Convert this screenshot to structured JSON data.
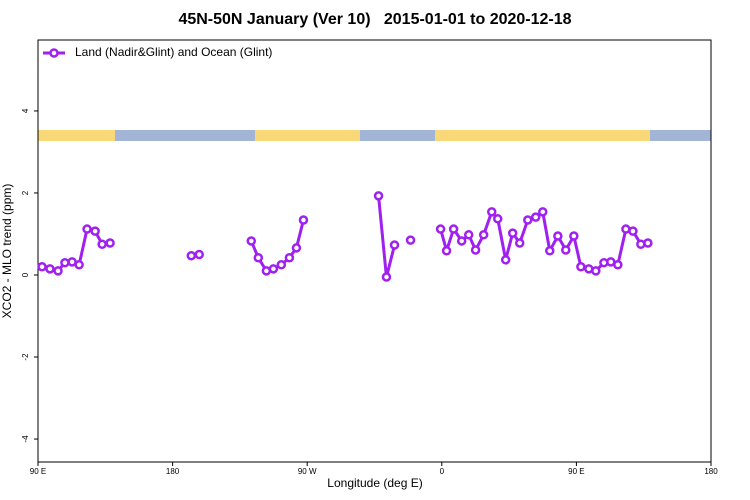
{
  "chart_data": {
    "type": "line",
    "title": "45N-50N January (Ver 10)   2015-01-01 to 2020-12-18",
    "x_label": "Longitude (deg E)",
    "y_label": "XCO2 - MLO trend (ppm)",
    "xlim": [
      90,
      540
    ],
    "xticks": [
      {
        "value": 90,
        "label": "90 E"
      },
      180,
      {
        "value": 270,
        "label": "90 W"
      },
      {
        "value": 360,
        "label": "0"
      },
      {
        "value": 450,
        "label": "90 E"
      },
      {
        "value": 540,
        "label": "180"
      }
    ],
    "ylim": [
      -4.56,
      5.73
    ],
    "yticks": [
      4,
      2,
      0,
      -2,
      -4
    ],
    "legend": "top-left",
    "x": [
      92.7,
      98,
      103.4,
      108,
      112.8,
      117.5,
      122.8,
      128.2,
      132.9,
      138.2,
      165,
      192.5,
      197.8,
      215,
      232.6,
      237.3,
      242.7,
      247.4,
      252.7,
      258.1,
      262.8,
      267.5,
      290,
      317.7,
      323,
      328.4,
      334,
      339.1,
      350,
      359.2,
      363.2,
      367.9,
      373.3,
      378,
      382.6,
      388,
      393.4,
      397.4,
      402.7,
      407.4,
      412.1,
      417.5,
      422.8,
      427.5,
      432.2,
      437.6,
      442.9,
      448.3,
      453,
      458.3,
      463,
      468.4,
      473,
      477.7,
      483.1,
      487.8,
      493.1,
      497.8
    ],
    "series": [
      {
        "name": "Land (Nadir&Glint) and Ocean (Glint)",
        "color": "#a020f0",
        "values": [
          0.2,
          0.15,
          0.1,
          0.3,
          0.32,
          0.25,
          1.12,
          1.07,
          0.75,
          0.78,
          null,
          0.47,
          0.5,
          null,
          0.83,
          0.42,
          0.1,
          0.15,
          0.25,
          0.42,
          0.66,
          1.34,
          null,
          1.93,
          -0.05,
          0.73,
          null,
          0.85,
          null,
          1.12,
          0.59,
          1.12,
          0.83,
          0.98,
          0.61,
          0.98,
          1.54,
          1.37,
          0.37,
          1.02,
          0.78,
          1.34,
          1.41,
          1.54,
          0.59,
          0.95,
          0.61,
          0.95,
          0.2,
          0.15,
          0.1,
          0.3,
          0.32,
          0.25,
          1.12,
          1.07,
          0.75,
          0.78
        ]
      }
    ]
  }
}
